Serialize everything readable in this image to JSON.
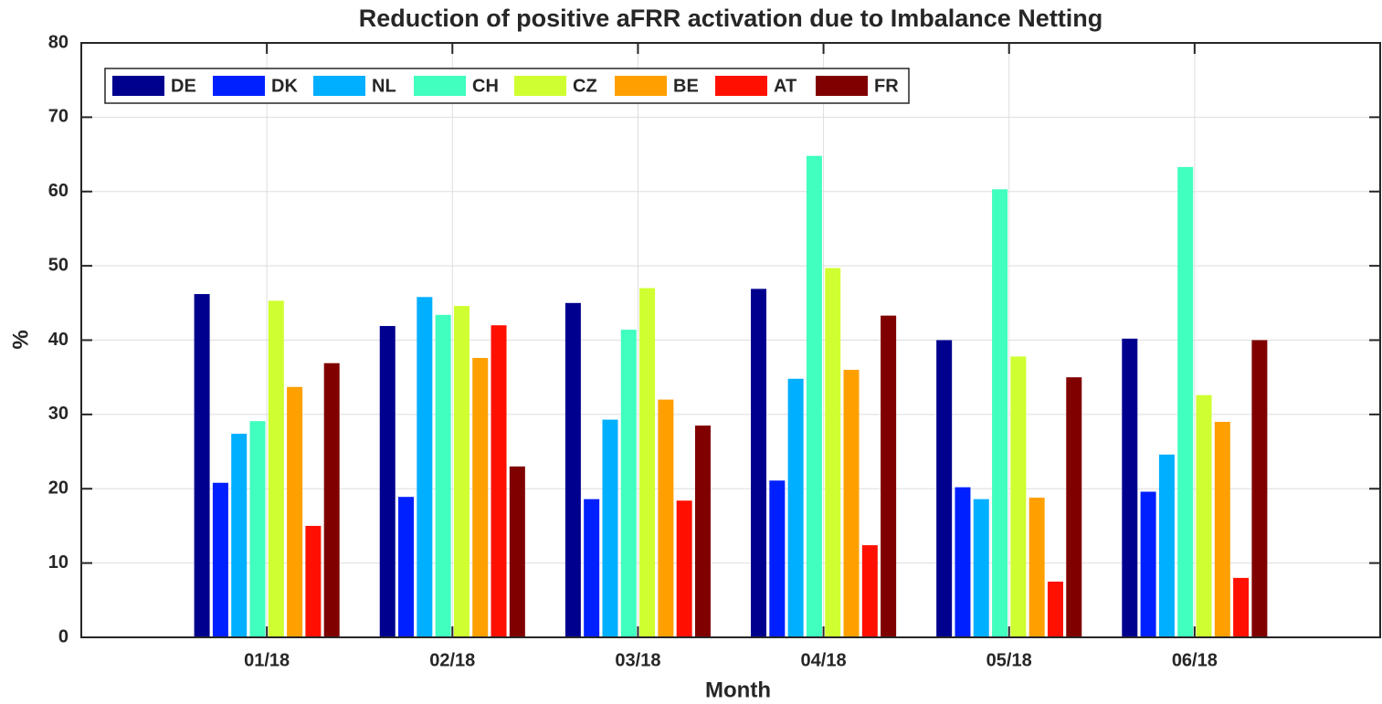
{
  "chart_data": {
    "type": "bar",
    "title": "Reduction of positive aFRR activation due to Imbalance Netting",
    "xlabel": "Month",
    "ylabel": "%",
    "categories": [
      "01/18",
      "02/18",
      "03/18",
      "04/18",
      "05/18",
      "06/18"
    ],
    "series": [
      {
        "name": "DE",
        "color": "#00008f",
        "values": [
          46.2,
          41.9,
          45.0,
          46.9,
          40.0,
          40.2
        ]
      },
      {
        "name": "DK",
        "color": "#0020ff",
        "values": [
          20.8,
          18.9,
          18.6,
          21.1,
          20.2,
          19.6
        ]
      },
      {
        "name": "NL",
        "color": "#00afff",
        "values": [
          27.4,
          45.8,
          29.3,
          34.8,
          18.6,
          24.6
        ]
      },
      {
        "name": "CH",
        "color": "#40ffbf",
        "values": [
          29.1,
          43.4,
          41.4,
          64.8,
          60.3,
          63.3
        ]
      },
      {
        "name": "CZ",
        "color": "#cfff30",
        "values": [
          45.3,
          44.6,
          47.0,
          49.7,
          37.8,
          32.6
        ]
      },
      {
        "name": "BE",
        "color": "#ffa000",
        "values": [
          33.7,
          37.6,
          32.0,
          36.0,
          18.8,
          29.0
        ]
      },
      {
        "name": "AT",
        "color": "#ff1000",
        "values": [
          15.0,
          42.0,
          18.4,
          12.4,
          7.5,
          8.0
        ]
      },
      {
        "name": "FR",
        "color": "#800000",
        "values": [
          36.9,
          23.0,
          28.5,
          43.3,
          35.0,
          40.0
        ]
      }
    ],
    "ylim": [
      0,
      80
    ],
    "yticks": [
      0,
      10,
      20,
      30,
      40,
      50,
      60,
      70,
      80
    ],
    "grid": true,
    "legend": "top-left"
  }
}
